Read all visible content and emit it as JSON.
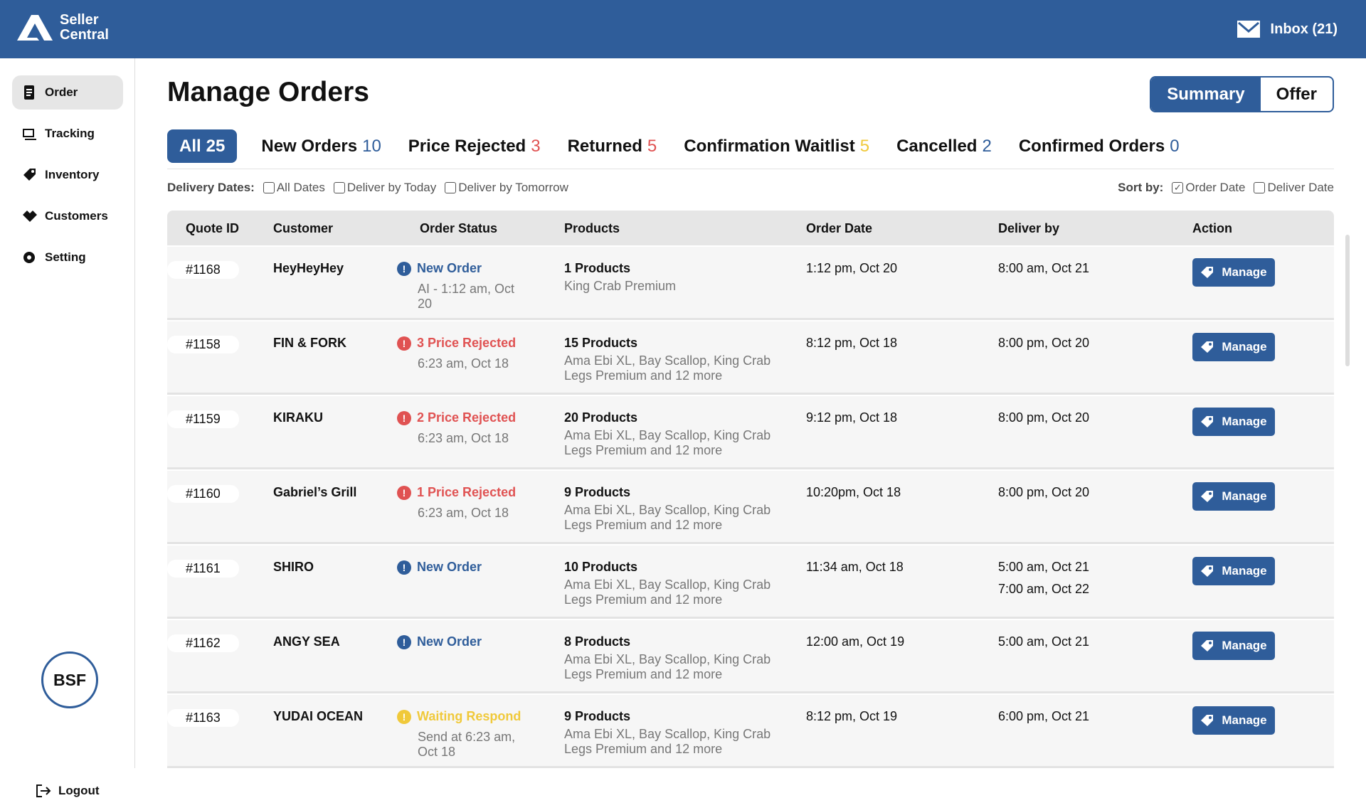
{
  "header": {
    "logo": [
      "Seller",
      "Central"
    ],
    "inbox": "Inbox (21)"
  },
  "sidebar": {
    "nav": [
      "Order",
      "Tracking",
      "Inventory",
      "Customers",
      "Setting"
    ],
    "active": 0,
    "avatar": "BSF",
    "logout": "Logout"
  },
  "title": "Manage Orders",
  "view_toggle": {
    "options": [
      "Summary",
      "Offer"
    ],
    "active": 0
  },
  "tabs": [
    {
      "label": "All",
      "count": 25,
      "color": "#ffffff"
    },
    {
      "label": "New Orders",
      "count": 10,
      "color": "#2f5d9a"
    },
    {
      "label": "Price Rejected",
      "count": 3,
      "color": "#e05252"
    },
    {
      "label": "Returned",
      "count": 5,
      "color": "#e05252"
    },
    {
      "label": "Confirmation Waitlist",
      "count": 5,
      "color": "#f0c93a"
    },
    {
      "label": "Cancelled",
      "count": 2,
      "color": "#2f5d9a"
    },
    {
      "label": "Confirmed Orders",
      "count": 0,
      "color": "#2f5d9a"
    }
  ],
  "active_tab": 0,
  "filters": {
    "delivery": {
      "label": "Delivery Dates:",
      "options": [
        {
          "label": "All Dates",
          "checked": false
        },
        {
          "label": "Deliver by Today",
          "checked": false
        },
        {
          "label": "Deliver by Tomorrow",
          "checked": false
        }
      ]
    },
    "sort": {
      "label": "Sort by:",
      "options": [
        {
          "label": "Order Date",
          "checked": true
        },
        {
          "label": "Deliver Date",
          "checked": false
        }
      ]
    }
  },
  "table": {
    "columns": [
      "Quote ID",
      "Customer",
      "Order Status",
      "Products",
      "Order Date",
      "Deliver by",
      "Action"
    ],
    "rows": [
      {
        "id": "#1168",
        "customer": "HeyHeyHey",
        "status": {
          "label": "New Order",
          "time": "AI - 1:12 am, Oct 20",
          "color": "#2f5d9a"
        },
        "products": {
          "count": "1 Products",
          "items": "King Crab Premium"
        },
        "order_date": "1:12 pm, Oct 20",
        "deliver_by": [
          "8:00 am, Oct 21"
        ],
        "action": "Manage"
      },
      {
        "id": "#1158",
        "customer": "FIN & FORK",
        "status": {
          "label": "3 Price Rejected",
          "time": "6:23 am, Oct 18",
          "color": "#e05252"
        },
        "products": {
          "count": "15 Products",
          "items": "Ama Ebi XL, Bay Scallop, King Crab Legs Premium and 12 more"
        },
        "order_date": "8:12 pm, Oct 18",
        "deliver_by": [
          "8:00 pm, Oct 20"
        ],
        "action": "Manage"
      },
      {
        "id": "#1159",
        "customer": "KIRAKU",
        "status": {
          "label": "2 Price Rejected",
          "time": "6:23 am, Oct 18",
          "color": "#e05252"
        },
        "products": {
          "count": "20 Products",
          "items": "Ama Ebi XL, Bay Scallop, King Crab Legs Premium and 12 more"
        },
        "order_date": "9:12 pm, Oct 18",
        "deliver_by": [
          "8:00 pm, Oct 20"
        ],
        "action": "Manage"
      },
      {
        "id": "#1160",
        "customer": "Gabriel’s Grill",
        "status": {
          "label": "1 Price Rejected",
          "time": "6:23 am, Oct 18",
          "color": "#e05252"
        },
        "products": {
          "count": "9 Products",
          "items": "Ama Ebi XL, Bay Scallop, King Crab Legs Premium and 12 more"
        },
        "order_date": "10:20pm, Oct 18",
        "deliver_by": [
          "8:00 pm, Oct 20"
        ],
        "action": "Manage"
      },
      {
        "id": "#1161",
        "customer": "SHIRO",
        "status": {
          "label": "New Order",
          "color": "#2f5d9a"
        },
        "products": {
          "count": "10 Products",
          "items": "Ama Ebi XL, Bay Scallop, King Crab Legs Premium and 12 more"
        },
        "order_date": "11:34 am, Oct 18",
        "deliver_by": [
          "5:00 am, Oct 21",
          "7:00 am, Oct 22"
        ],
        "action": "Manage"
      },
      {
        "id": "#1162",
        "customer": "ANGY SEA",
        "status": {
          "label": "New Order",
          "color": "#2f5d9a"
        },
        "products": {
          "count": "8 Products",
          "items": "Ama Ebi XL, Bay Scallop, King Crab Legs Premium and 12 more"
        },
        "order_date": "12:00 am, Oct 19",
        "deliver_by": [
          "5:00 am, Oct 21"
        ],
        "action": "Manage"
      },
      {
        "id": "#1163",
        "customer": "YUDAI OCEAN",
        "status": {
          "label": "Waiting Respond",
          "time": "Send at 6:23 am, Oct 18",
          "color": "#f0c93a"
        },
        "products": {
          "count": "9 Products",
          "items": "Ama Ebi XL, Bay Scallop, King Crab Legs Premium and 12 more"
        },
        "order_date": "8:12 pm, Oct 19",
        "deliver_by": [
          "6:00 pm, Oct 21"
        ],
        "action": "Manage"
      }
    ]
  }
}
